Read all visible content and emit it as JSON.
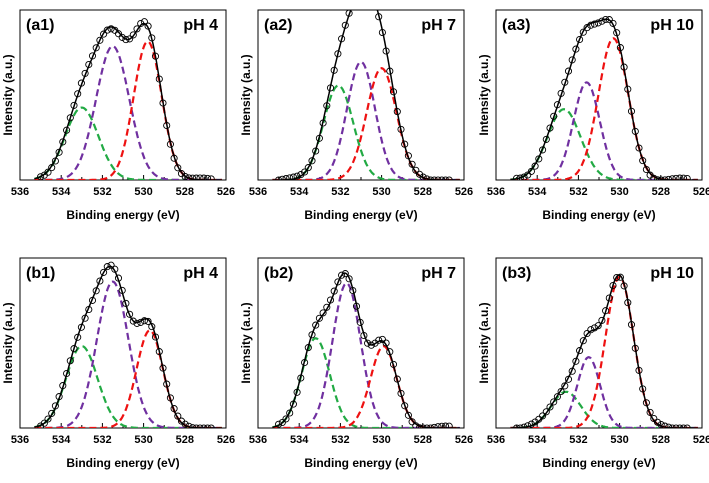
{
  "figure": {
    "x_ticks": [
      536,
      534,
      532,
      530,
      528,
      526
    ],
    "xlabel": "Binding energy (eV)",
    "ylabel": "Intensity (a.u.)",
    "xlim": [
      536,
      526
    ],
    "ylim": [
      0,
      1.08
    ]
  },
  "colors": {
    "green": "#22aa44",
    "purple": "#7030a0",
    "red": "#ee1111",
    "fit": "#000000",
    "data_marker": "#000000"
  },
  "chart_data": [
    {
      "type": "line",
      "label": "(a1)",
      "condition": "pH 4",
      "peaks": [
        {
          "name": "green",
          "center": 533.0,
          "fwhm": 1.9,
          "amp": 0.46
        },
        {
          "name": "purple",
          "center": 531.5,
          "fwhm": 1.9,
          "amp": 0.85
        },
        {
          "name": "red",
          "center": 529.8,
          "fwhm": 1.6,
          "amp": 0.88
        }
      ]
    },
    {
      "type": "line",
      "label": "(a2)",
      "condition": "pH 7",
      "peaks": [
        {
          "name": "green",
          "center": 532.1,
          "fwhm": 1.7,
          "amp": 0.6
        },
        {
          "name": "purple",
          "center": 531.0,
          "fwhm": 1.6,
          "amp": 0.75
        },
        {
          "name": "red",
          "center": 530.0,
          "fwhm": 1.7,
          "amp": 0.71
        }
      ]
    },
    {
      "type": "line",
      "label": "(a3)",
      "condition": "pH 10",
      "peaks": [
        {
          "name": "green",
          "center": 532.7,
          "fwhm": 1.9,
          "amp": 0.45
        },
        {
          "name": "purple",
          "center": 531.6,
          "fwhm": 1.5,
          "amp": 0.62
        },
        {
          "name": "red",
          "center": 530.3,
          "fwhm": 1.7,
          "amp": 0.9
        }
      ]
    },
    {
      "type": "line",
      "label": "(b1)",
      "condition": "pH 4",
      "peaks": [
        {
          "name": "green",
          "center": 533.0,
          "fwhm": 1.8,
          "amp": 0.52
        },
        {
          "name": "purple",
          "center": 531.5,
          "fwhm": 1.8,
          "amp": 0.93
        },
        {
          "name": "red",
          "center": 529.7,
          "fwhm": 1.5,
          "amp": 0.62
        }
      ]
    },
    {
      "type": "line",
      "label": "(b2)",
      "condition": "pH 7",
      "peaks": [
        {
          "name": "green",
          "center": 533.2,
          "fwhm": 1.6,
          "amp": 0.57
        },
        {
          "name": "purple",
          "center": 531.7,
          "fwhm": 1.6,
          "amp": 0.92
        },
        {
          "name": "red",
          "center": 529.9,
          "fwhm": 1.5,
          "amp": 0.52
        }
      ]
    },
    {
      "type": "line",
      "label": "(b3)",
      "condition": "pH 10",
      "peaks": [
        {
          "name": "green",
          "center": 532.6,
          "fwhm": 1.7,
          "amp": 0.23
        },
        {
          "name": "purple",
          "center": 531.5,
          "fwhm": 1.3,
          "amp": 0.45
        },
        {
          "name": "red",
          "center": 530.0,
          "fwhm": 1.6,
          "amp": 0.96
        }
      ]
    }
  ]
}
